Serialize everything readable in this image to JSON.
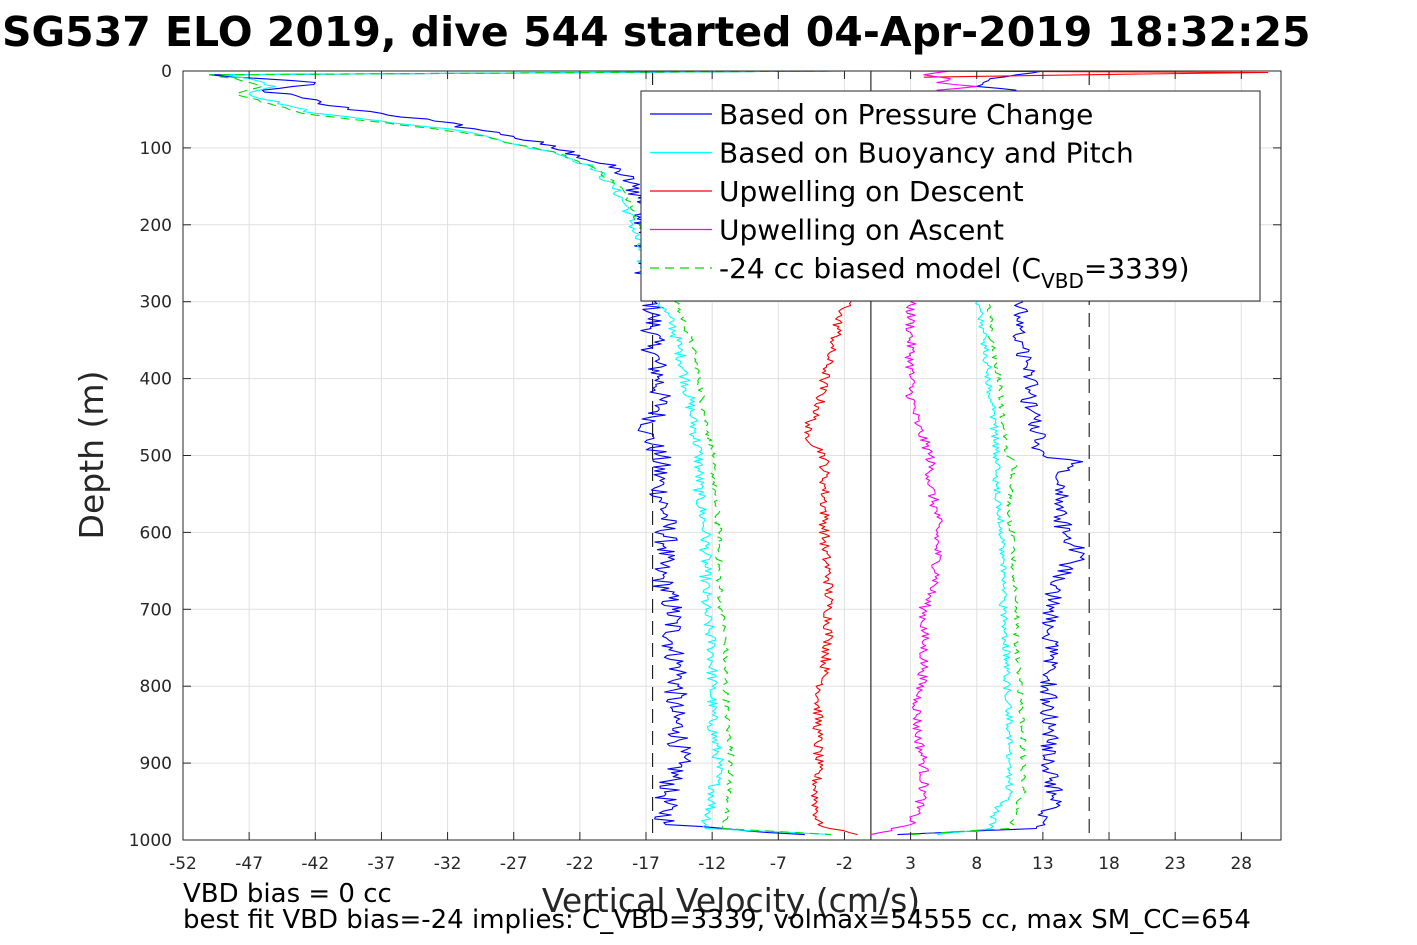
{
  "chart_data": {
    "type": "line",
    "title": "SG537 ELO 2019, dive 544 started 04-Apr-2019 18:32:25",
    "xlabel": "Vertical Velocity (cm/s)",
    "ylabel": "Depth (m)",
    "xlim": [
      -52,
      31
    ],
    "ylim": [
      0,
      1000
    ],
    "y_reversed": true,
    "grid": true,
    "x_ticks": [
      -52,
      -47,
      -42,
      -37,
      -32,
      -27,
      -22,
      -17,
      -12,
      -7,
      -2,
      3,
      8,
      13,
      18,
      23,
      28
    ],
    "x_tick_labels": [
      "-52",
      "-47",
      "-42",
      "-37",
      "-32",
      "-27",
      "-22",
      "-17",
      "-12",
      "-7",
      "-2",
      "3",
      "8",
      "13",
      "18",
      "23",
      "28"
    ],
    "y_ticks": [
      0,
      100,
      200,
      300,
      400,
      500,
      600,
      700,
      800,
      900,
      1000
    ],
    "y_tick_labels": [
      "0",
      "100",
      "200",
      "300",
      "400",
      "500",
      "600",
      "700",
      "800",
      "900",
      "1000"
    ],
    "reference_lines": [
      {
        "x": 0,
        "style": "solid",
        "color": "#000000"
      },
      {
        "x": -16.5,
        "style": "dashed",
        "color": "#000000"
      },
      {
        "x": 16.5,
        "style": "dashed",
        "color": "#000000"
      }
    ],
    "legend": {
      "placement": "top-right",
      "entries": [
        {
          "label": "Based on Pressure Change",
          "color": "#0000ff",
          "style": "solid"
        },
        {
          "label": "Based on Buoyancy and Pitch",
          "color": "#00ffff",
          "style": "solid"
        },
        {
          "label": "Upwelling on Descent",
          "color": "#ff0000",
          "style": "solid"
        },
        {
          "label": "Upwelling on Ascent",
          "color": "#ff00ff",
          "style": "solid"
        },
        {
          "label_prefix": "-24 cc biased model (C",
          "label_sub": "VBD",
          "label_suffix": "=3339)",
          "color": "#00dd00",
          "style": "dashed"
        }
      ]
    },
    "series": [
      {
        "key": "pressure_descent",
        "color": "#0000ff",
        "dash": "",
        "jitter": 0.9,
        "depth": [
          0,
          5,
          10,
          15,
          25,
          35,
          45,
          55,
          65,
          75,
          85,
          95,
          110,
          130,
          150,
          175,
          200,
          230,
          260,
          290,
          320,
          360,
          400,
          440,
          470,
          500,
          540,
          580,
          620,
          650,
          700,
          750,
          780,
          830,
          860,
          900,
          940,
          980,
          993
        ],
        "x": [
          -2,
          -50,
          -46,
          -42,
          -46,
          -43,
          -41,
          -37,
          -33,
          -30,
          -27,
          -25,
          -22,
          -19,
          -18,
          -17,
          -17,
          -17,
          -17,
          -16.5,
          -16.5,
          -16.5,
          -16,
          -16,
          -17,
          -16,
          -16,
          -15.5,
          -15.5,
          -16,
          -15,
          -15,
          -14.5,
          -15,
          -14.5,
          -14.5,
          -15.5,
          -15.5,
          -5
        ]
      },
      {
        "key": "buoyancy_descent",
        "color": "#00ffff",
        "dash": "",
        "jitter": 0.45,
        "depth": [
          0,
          5,
          10,
          20,
          30,
          45,
          55,
          65,
          75,
          85,
          95,
          105,
          125,
          150,
          175,
          200,
          230,
          260,
          300,
          330,
          360,
          400,
          450,
          500,
          550,
          600,
          650,
          700,
          750,
          800,
          850,
          900,
          950,
          985,
          993
        ],
        "x": [
          -2,
          -49,
          -47,
          -45,
          -47,
          -44,
          -42,
          -37,
          -32,
          -29,
          -27,
          -24,
          -21,
          -19.5,
          -18.5,
          -18,
          -17.5,
          -17.2,
          -16,
          -15,
          -14.5,
          -14,
          -13.5,
          -13,
          -13,
          -12.5,
          -12.5,
          -12.5,
          -12,
          -12,
          -12,
          -11.5,
          -12,
          -12.5,
          -3
        ]
      },
      {
        "key": "model_descent",
        "color": "#00dd00",
        "dash": "9,6",
        "jitter": 0.25,
        "depth": [
          0,
          5,
          10,
          20,
          30,
          45,
          55,
          65,
          75,
          85,
          95,
          105,
          125,
          150,
          175,
          200,
          230,
          260,
          300,
          330,
          360,
          400,
          450,
          500,
          550,
          600,
          650,
          700,
          750,
          800,
          850,
          900,
          950,
          985,
          993
        ],
        "x": [
          -2,
          -50,
          -48,
          -46,
          -48,
          -45,
          -43,
          -38,
          -33,
          -29,
          -27,
          -24,
          -21,
          -19,
          -18,
          -17.5,
          -17,
          -16.5,
          -14.8,
          -14,
          -13.5,
          -13,
          -12.5,
          -12,
          -11.8,
          -11.5,
          -11.5,
          -11.3,
          -11,
          -11,
          -10.8,
          -10.5,
          -10.8,
          -11.2,
          -3
        ]
      },
      {
        "key": "upwelling_descent",
        "color": "#ff0000",
        "dash": "",
        "jitter": 0.4,
        "depth": [
          300,
          320,
          340,
          360,
          400,
          440,
          470,
          500,
          540,
          580,
          620,
          660,
          700,
          740,
          780,
          820,
          860,
          900,
          940,
          980,
          993
        ],
        "x": [
          -1.5,
          -2.5,
          -2.5,
          -3,
          -3.5,
          -4,
          -5,
          -3.5,
          -3.5,
          -3.5,
          -3.5,
          -3.2,
          -3.2,
          -3.2,
          -3.5,
          -4,
          -4,
          -4,
          -4.2,
          -4,
          -1
        ]
      },
      {
        "key": "upwelling_ascent",
        "color": "#ff00ff",
        "dash": "",
        "jitter": 0.4,
        "depth": [
          300,
          340,
          380,
          420,
          460,
          500,
          540,
          580,
          620,
          660,
          700,
          740,
          780,
          820,
          860,
          900,
          940,
          980,
          993
        ],
        "x": [
          3,
          3,
          3,
          3,
          3.5,
          4.5,
          4.5,
          5,
          5,
          5,
          4,
          4,
          4,
          3.5,
          3.5,
          4,
          4,
          3,
          0
        ]
      },
      {
        "key": "pressure_ascent",
        "color": "#0000ff",
        "dash": "",
        "jitter": 0.7,
        "depth": [
          993,
          985,
          960,
          940,
          920,
          900,
          860,
          820,
          780,
          740,
          700,
          670,
          640,
          630,
          600,
          560,
          530,
          508,
          500,
          470,
          440,
          400,
          360,
          330,
          300
        ],
        "x": [
          2,
          12.5,
          13.5,
          14,
          13.5,
          13.5,
          13.5,
          13.5,
          13.5,
          13.5,
          13.5,
          14,
          15,
          16,
          14.5,
          14.5,
          14,
          16,
          13,
          12.5,
          12,
          12,
          11.5,
          11,
          11.5
        ]
      },
      {
        "key": "buoyancy_ascent",
        "color": "#00ffff",
        "dash": "",
        "jitter": 0.3,
        "depth": [
          993,
          985,
          960,
          940,
          900,
          860,
          820,
          780,
          740,
          700,
          660,
          620,
          580,
          540,
          500,
          460,
          420,
          380,
          340,
          300
        ],
        "x": [
          5,
          9,
          9.5,
          10.5,
          10.5,
          10.5,
          10.3,
          10.3,
          10.2,
          10,
          10,
          10,
          9.8,
          9.5,
          9.5,
          9.3,
          9,
          8.8,
          8.5,
          8
        ]
      },
      {
        "key": "model_ascent",
        "color": "#00dd00",
        "dash": "9,6",
        "jitter": 0.22,
        "depth": [
          993,
          985,
          960,
          940,
          900,
          860,
          820,
          780,
          740,
          700,
          660,
          620,
          580,
          540,
          510,
          500,
          460,
          420,
          380,
          340,
          300
        ],
        "x": [
          3,
          10.5,
          11,
          11.5,
          11.5,
          11.5,
          11.3,
          11.2,
          11,
          11,
          10.8,
          10.8,
          10.5,
          10.5,
          11,
          10.2,
          10,
          9.8,
          9.5,
          9,
          9
        ]
      },
      {
        "key": "surface_ascent_tail",
        "color": "#0000ff",
        "dash": "",
        "jitter": 0.3,
        "depth": [
          0,
          5,
          10,
          15,
          20,
          25
        ],
        "x": [
          13,
          11,
          9,
          8.5,
          8,
          11
        ]
      },
      {
        "key": "surface_upwelling_red",
        "color": "#ff0000",
        "dash": "",
        "jitter": 0,
        "depth": [
          0,
          2,
          4,
          6,
          8
        ],
        "x": [
          2,
          30,
          20,
          12,
          4
        ]
      },
      {
        "key": "surface_upwelling_magenta",
        "color": "#ff00ff",
        "dash": "",
        "jitter": 0.4,
        "depth": [
          0,
          5,
          10,
          15,
          20,
          25,
          30
        ],
        "x": [
          6,
          4,
          6,
          5,
          8,
          5,
          6
        ]
      }
    ]
  },
  "notes": {
    "line1": "VBD bias = 0 cc",
    "line2": "best fit VBD bias=-24 implies: C_VBD=3339, volmax=54555 cc, max SM_CC=654"
  }
}
